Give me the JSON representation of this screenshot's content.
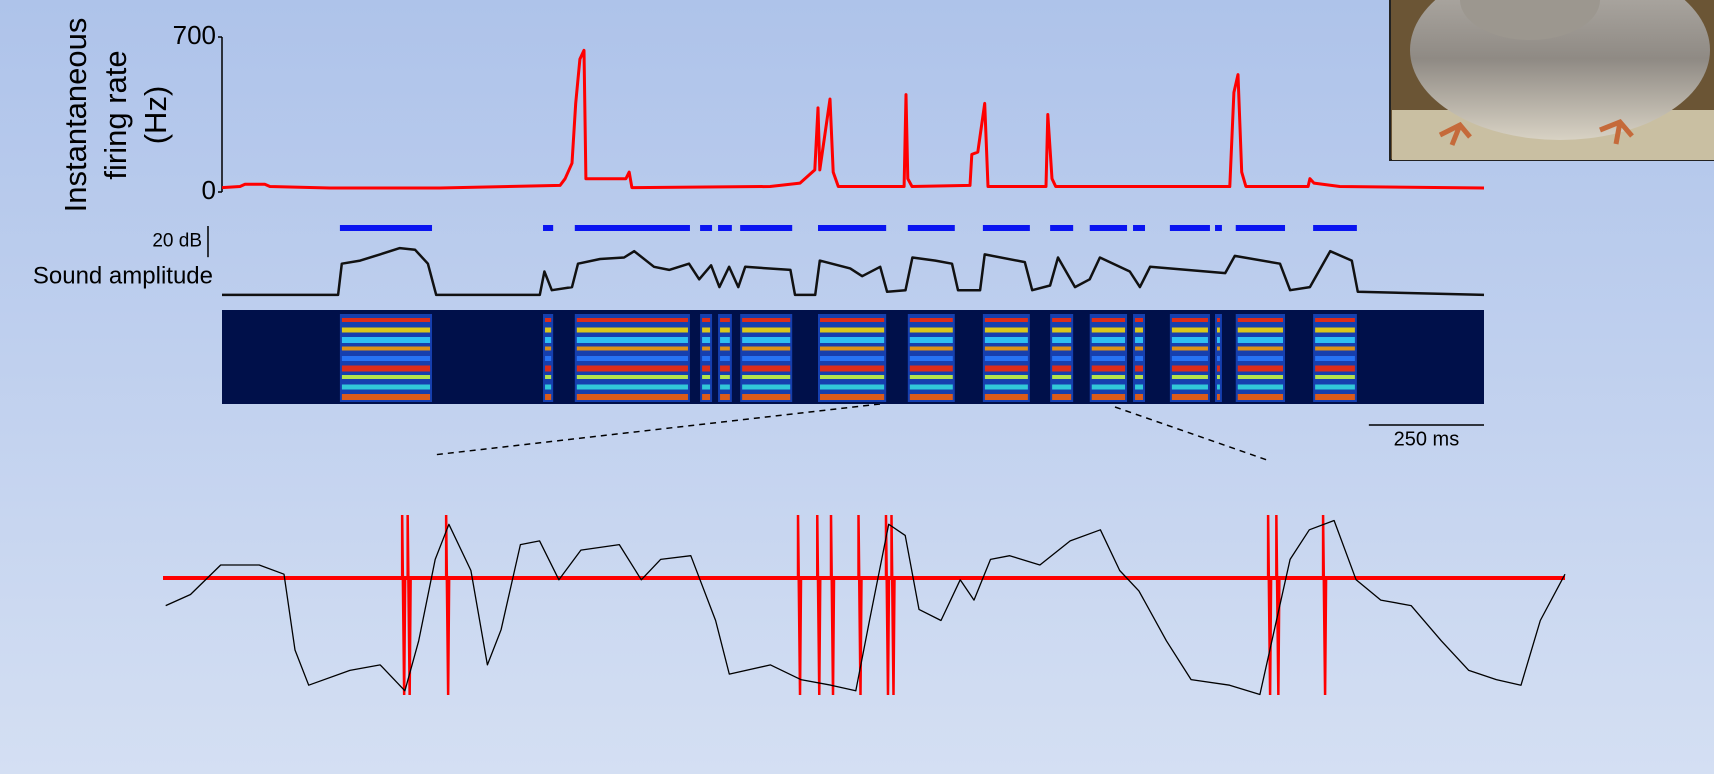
{
  "chart_data": [
    {
      "type": "line",
      "ylabel": [
        "Instantaneous",
        "firing rate",
        "(Hz)"
      ],
      "color": "#ff0000",
      "xlim": [
        0,
        2740
      ],
      "ylim": [
        0,
        700
      ],
      "yticks": [
        0,
        700
      ],
      "x": [
        0,
        39,
        50,
        93,
        104,
        234,
        473,
        734,
        745,
        760,
        768,
        777,
        786,
        790,
        877,
        884,
        890,
        1190,
        1255,
        1287,
        1294,
        1298,
        1320,
        1327,
        1338,
        1481,
        1485,
        1489,
        1498,
        1624,
        1628,
        1641,
        1656,
        1663,
        1789,
        1793,
        1802,
        1810,
        2188,
        2197,
        2206,
        2214,
        2223,
        2358,
        2362,
        2371,
        2427,
        2740
      ],
      "values": [
        20,
        25,
        35,
        35,
        25,
        18,
        18,
        30,
        60,
        130,
        400,
        600,
        640,
        60,
        60,
        90,
        20,
        25,
        40,
        100,
        380,
        100,
        420,
        90,
        25,
        25,
        440,
        60,
        25,
        30,
        170,
        180,
        400,
        25,
        25,
        350,
        60,
        25,
        25,
        450,
        530,
        90,
        25,
        25,
        60,
        40,
        25,
        18
      ]
    },
    {
      "type": "line",
      "ylabel": "Sound amplitude",
      "color": "#111111",
      "xlim": [
        0,
        2740
      ],
      "ylim": [
        -2,
        32
      ],
      "amp_scalebar": {
        "value": 20,
        "label": "20 dB"
      },
      "time_scalebar": {
        "value": 250,
        "label": "250 ms"
      },
      "syllable_color": "#0a14f0",
      "syllables": [
        [
          256,
          456
        ],
        [
          697,
          719
        ],
        [
          766,
          1016
        ],
        [
          1038,
          1064
        ],
        [
          1077,
          1107
        ],
        [
          1125,
          1238
        ],
        [
          1294,
          1442
        ],
        [
          1489,
          1591
        ],
        [
          1652,
          1754
        ],
        [
          1798,
          1848
        ],
        [
          1884,
          1965
        ],
        [
          1978,
          2004
        ],
        [
          2058,
          2145
        ],
        [
          2156,
          2171
        ],
        [
          2201,
          2308
        ],
        [
          2369,
          2464
        ]
      ],
      "x": [
        0,
        252,
        260,
        300,
        343,
        386,
        419,
        447,
        465,
        690,
        700,
        716,
        760,
        773,
        821,
        873,
        895,
        938,
        971,
        1014,
        1036,
        1062,
        1080,
        1101,
        1121,
        1136,
        1234,
        1244,
        1288,
        1298,
        1364,
        1390,
        1429,
        1444,
        1484,
        1499,
        1549,
        1585,
        1598,
        1646,
        1656,
        1743,
        1759,
        1798,
        1815,
        1852,
        1884,
        1906,
        1971,
        1993,
        2015,
        2178,
        2199,
        2297,
        2319,
        2362,
        2406,
        2453,
        2466,
        2740
      ],
      "values": [
        0,
        0,
        20,
        22,
        26,
        30,
        29,
        20,
        0,
        0,
        15,
        3,
        5,
        20,
        23,
        24,
        28,
        18,
        16,
        20,
        10,
        19,
        5,
        18,
        5,
        18,
        16,
        0,
        0,
        22,
        17,
        12,
        18,
        2,
        3,
        24,
        22,
        20,
        3,
        3,
        26,
        21,
        3,
        6,
        24,
        5,
        10,
        24,
        15,
        5,
        18,
        14,
        25,
        20,
        3,
        5,
        28,
        22,
        2,
        0
      ]
    },
    {
      "type": "line",
      "color": "#000000",
      "spike_color": "#ff0000",
      "xlim": [
        1430,
        1940
      ],
      "ylim": [
        0,
        100
      ],
      "spikes": [
        1517,
        1519,
        1533,
        1661,
        1668,
        1673,
        1683,
        1693,
        1695,
        1832,
        1835,
        1852
      ],
      "x": [
        1431,
        1440,
        1451,
        1465,
        1474,
        1478,
        1483,
        1498,
        1509,
        1518,
        1523,
        1529,
        1534,
        1542,
        1548,
        1553,
        1560,
        1567,
        1574,
        1582,
        1596,
        1604,
        1611,
        1622,
        1631,
        1636,
        1651,
        1662,
        1673,
        1682,
        1687,
        1694,
        1700,
        1705,
        1713,
        1720,
        1725,
        1731,
        1738,
        1749,
        1760,
        1771,
        1778,
        1785,
        1795,
        1804,
        1818,
        1829,
        1840,
        1847,
        1856,
        1864,
        1873,
        1884,
        1895,
        1905,
        1915,
        1924,
        1931,
        1940
      ],
      "values": [
        51,
        57,
        73,
        73,
        68,
        27,
        8,
        16,
        19,
        5,
        32,
        76,
        95,
        70,
        19,
        38,
        84,
        86,
        65,
        81,
        84,
        65,
        76,
        78,
        43,
        14,
        19,
        11,
        8,
        5,
        43,
        95,
        89,
        49,
        43,
        65,
        54,
        76,
        78,
        73,
        86,
        92,
        70,
        59,
        32,
        11,
        8,
        3,
        76,
        92,
        97,
        65,
        54,
        51,
        32,
        16,
        11,
        8,
        43,
        68
      ]
    }
  ]
}
